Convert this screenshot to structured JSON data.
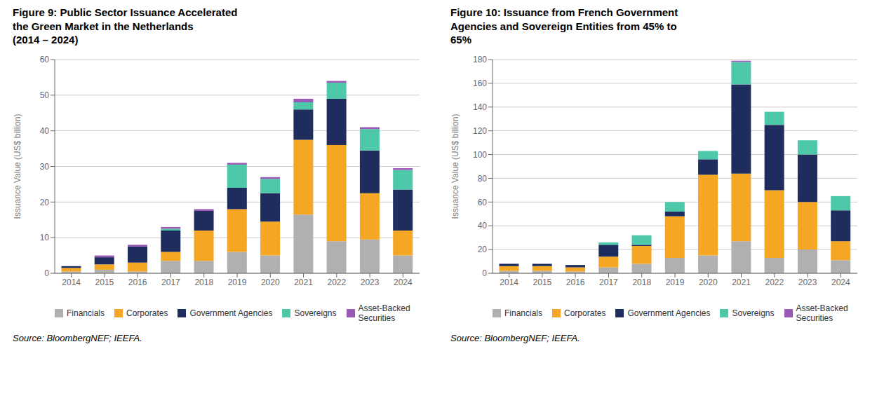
{
  "chart_data": [
    {
      "type": "bar",
      "stacked": true,
      "title": "Figure 9: Public Sector Issuance Accelerated\nthe Green Market in the Netherlands\n(2014 – 2024)",
      "y_label": "Issuance Value (US$ billion)",
      "annotations": [
        "Source: BloombergNEF; IEEFA."
      ],
      "categories": [
        "2014",
        "2015",
        "2016",
        "2017",
        "2018",
        "2019",
        "2020",
        "2021",
        "2022",
        "2023",
        "2024"
      ],
      "series": [
        {
          "name": "Financials",
          "color": "#b0b0b0",
          "values": [
            0.5,
            1.0,
            0.5,
            3.5,
            3.5,
            6.0,
            5.0,
            16.5,
            9.0,
            9.5,
            5.0
          ]
        },
        {
          "name": "Corporates",
          "color": "#f5a623",
          "values": [
            1.0,
            1.5,
            2.5,
            2.5,
            8.5,
            12.0,
            9.5,
            21.0,
            27.0,
            13.0,
            7.0
          ]
        },
        {
          "name": "Government Agencies",
          "color": "#1e2d5e",
          "values": [
            0.5,
            2.0,
            4.5,
            6.0,
            5.5,
            6.0,
            8.0,
            8.5,
            13.0,
            12.0,
            11.5
          ]
        },
        {
          "name": "Sovereigns",
          "color": "#4dc8a8",
          "values": [
            0.0,
            0.0,
            0.0,
            0.5,
            0.0,
            6.5,
            4.0,
            2.0,
            4.5,
            6.0,
            5.5
          ]
        },
        {
          "name": "Asset-Backed\nSecurities",
          "color": "#9b59b6",
          "values": [
            0.0,
            0.5,
            0.5,
            0.5,
            0.5,
            0.5,
            0.5,
            1.0,
            0.5,
            0.5,
            0.5
          ]
        }
      ],
      "ylim": [
        0,
        60
      ],
      "yticks": [
        0,
        10,
        20,
        30,
        40,
        50,
        60
      ],
      "grid": true,
      "legend": "bottom"
    },
    {
      "type": "bar",
      "stacked": true,
      "title": "Figure 10: Issuance from French Government\nAgencies and Sovereign Entities from 45% to\n65%",
      "y_label": "Issuance Value (US$ billion)",
      "annotations": [
        "Source: BloombergNEF; IEEFA."
      ],
      "categories": [
        "2014",
        "2015",
        "2016",
        "2017",
        "2018",
        "2019",
        "2020",
        "2021",
        "2022",
        "2023",
        "2024"
      ],
      "series": [
        {
          "name": "Financials",
          "color": "#b0b0b0",
          "values": [
            2.0,
            2.0,
            1.5,
            5.0,
            8.0,
            13.0,
            15.0,
            27.0,
            13.0,
            20.0,
            11.0
          ]
        },
        {
          "name": "Corporates",
          "color": "#f5a623",
          "values": [
            4.0,
            4.0,
            3.5,
            9.0,
            15.0,
            35.0,
            68.0,
            57.0,
            57.0,
            40.0,
            16.0
          ]
        },
        {
          "name": "Government Agencies",
          "color": "#1e2d5e",
          "values": [
            2.0,
            2.0,
            2.0,
            10.0,
            1.0,
            4.0,
            13.0,
            75.0,
            55.0,
            40.0,
            26.0
          ]
        },
        {
          "name": "Sovereigns",
          "color": "#4dc8a8",
          "values": [
            0.0,
            0.0,
            0.0,
            2.0,
            8.0,
            8.0,
            7.0,
            19.0,
            11.0,
            12.0,
            12.0
          ]
        },
        {
          "name": "Asset-Backed\nSecurities",
          "color": "#9b59b6",
          "values": [
            0.0,
            0.0,
            0.0,
            0.0,
            0.0,
            0.0,
            0.0,
            1.0,
            0.0,
            0.0,
            0.0
          ]
        }
      ],
      "ylim": [
        0,
        180
      ],
      "yticks": [
        0,
        20,
        40,
        60,
        80,
        100,
        120,
        140,
        160,
        180
      ],
      "grid": true,
      "legend": "bottom"
    }
  ]
}
